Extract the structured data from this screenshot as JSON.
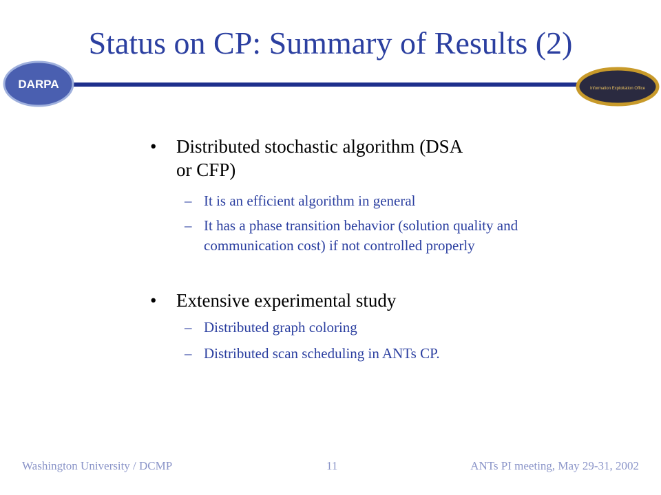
{
  "header": {
    "title": "Status on CP: Summary of Results (2)",
    "left_logo": "DARPA",
    "right_logo": "Information Exploitation Office"
  },
  "bullets": [
    {
      "text": "Distributed stochastic algorithm (DSA or CFP)",
      "subs": [
        "It is an efficient algorithm in general",
        "It has a phase transition behavior (solution quality and communication cost) if not controlled properly"
      ]
    },
    {
      "text": "Extensive experimental study",
      "subs": [
        "Distributed graph coloring",
        "Distributed scan scheduling in ANTs CP."
      ]
    }
  ],
  "footer": {
    "left": "Washington University / DCMP",
    "page": "11",
    "right": "ANTs PI meeting, May 29-31, 2002"
  }
}
